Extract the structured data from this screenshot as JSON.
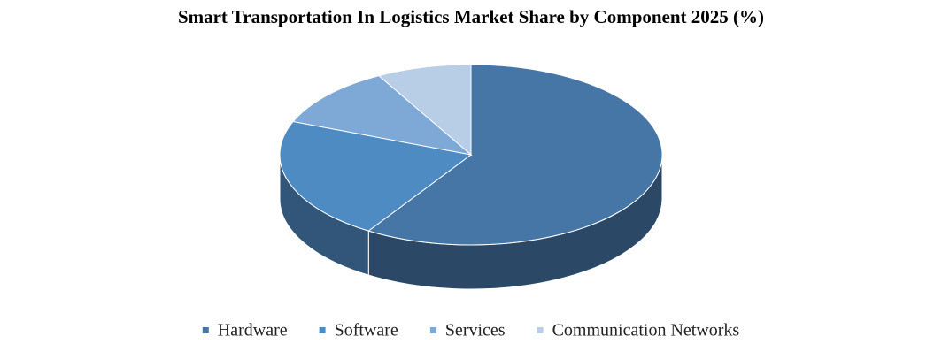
{
  "chart_data": {
    "type": "pie3d",
    "title": "Smart Transportation In Logistics Market Share by Component 2025 (%)",
    "categories": [
      "Hardware",
      "Software",
      "Services",
      "Communication Networks"
    ],
    "values": [
      59,
      22,
      11,
      8
    ],
    "colors": [
      "#4676a6",
      "#4f8bc3",
      "#7ea8d6",
      "#b8cde6"
    ],
    "legend": "bottom"
  }
}
